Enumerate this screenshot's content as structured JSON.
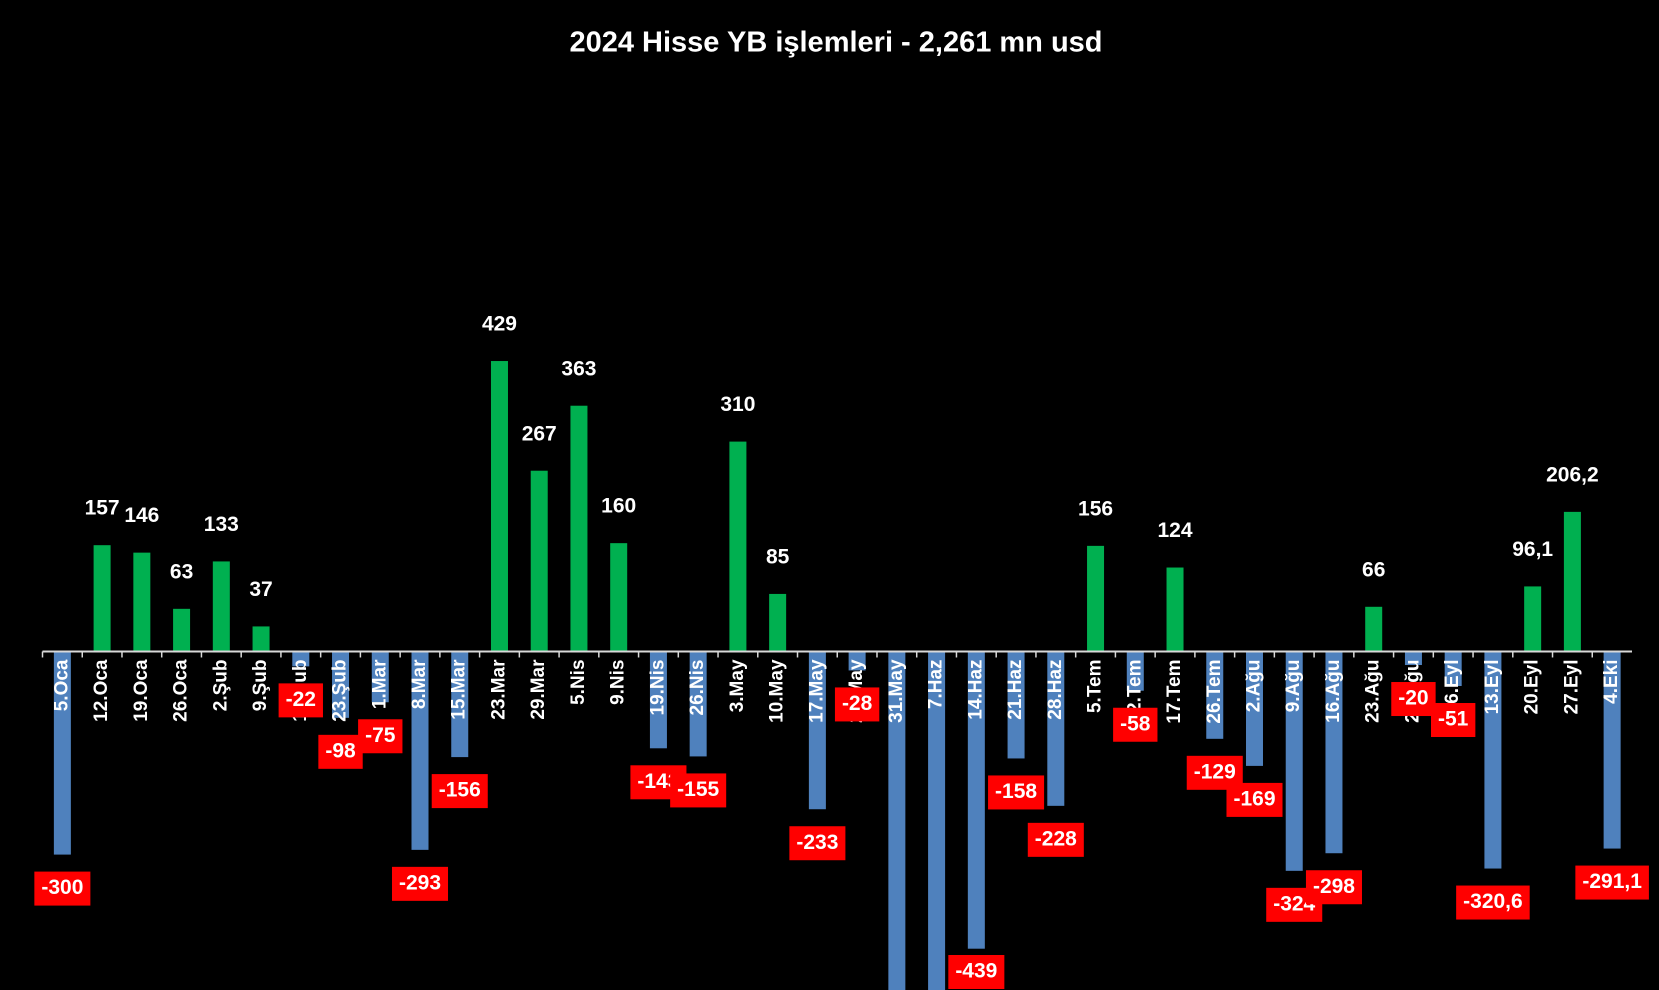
{
  "chart_data": {
    "type": "bar",
    "title": "2024  Hisse YB işlemleri   - 2,261  mn usd",
    "categories": [
      "5.Oca",
      "12.Oca",
      "19.Oca",
      "26.Oca",
      "2.Şub",
      "9.Şub",
      "16.Şub",
      "23.Şub",
      "1.Mar",
      "8.Mar",
      "15.Mar",
      "23.Mar",
      "29.Mar",
      "5.Nis",
      "9.Nis",
      "19.Nis",
      "26.Nis",
      "3.May",
      "10.May",
      "17.May",
      "24.May",
      "31.May",
      "7.Haz",
      "14.Haz",
      "21.Haz",
      "28.Haz",
      "5.Tem",
      "12.Tem",
      "17.Tem",
      "26.Tem",
      "2.Ağu",
      "9.Ağu",
      "16.Ağu",
      "23.Ağu",
      "29.Ağu",
      "6.Eyl",
      "13.Eyl",
      "20.Eyl",
      "27.Eyl",
      "4.Eki"
    ],
    "values": [
      -300,
      157,
      146,
      63,
      133,
      37,
      -22,
      -98,
      -75,
      -293,
      -156,
      429,
      267,
      363,
      160,
      -143,
      -155,
      310,
      85,
      -233,
      -28,
      -535,
      -536,
      -439,
      -158,
      -228,
      156,
      -58,
      124,
      -129,
      -169,
      -324,
      -298,
      66,
      -20,
      -51,
      -320.6,
      96.1,
      206.2,
      -291.1
    ],
    "value_labels": [
      "-300",
      "157",
      "146",
      "63",
      "133",
      "37",
      "-22",
      "-98",
      "-75",
      "-293",
      "-156",
      "429",
      "267",
      "363",
      "160",
      "-143",
      "-155",
      "310",
      "85",
      "-233",
      "-28",
      null,
      null,
      "-439",
      "-158",
      "-228",
      "156",
      "-58",
      "124",
      "-129",
      "-169",
      "-324",
      "-298",
      "66",
      "-20",
      "-51",
      "-320,6",
      "96,1",
      "206,2",
      "-291,1"
    ],
    "positive_color": "#00b050",
    "negative_color": "#4f81bd",
    "label_box_color": "#ff0000",
    "ylim": [
      -500,
      850
    ]
  }
}
